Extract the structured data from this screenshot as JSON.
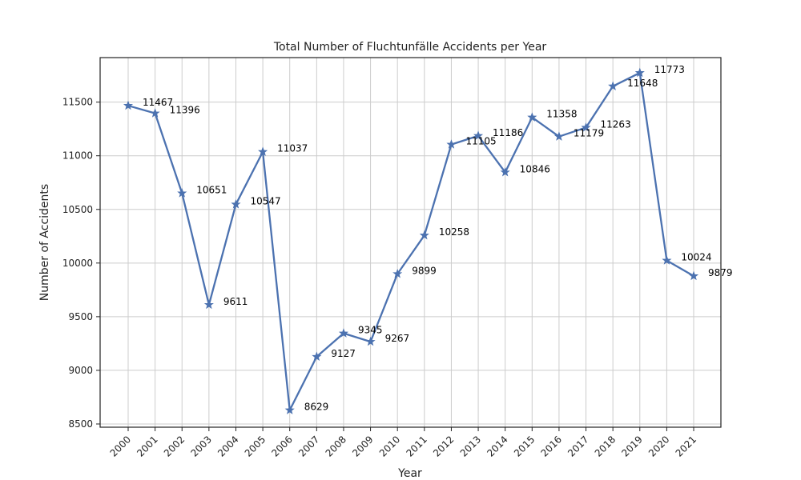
{
  "chart_data": {
    "type": "line",
    "title": "Total Number of Fluchtunfälle Accidents per Year",
    "xlabel": "Year",
    "ylabel": "Number of Accidents",
    "categories": [
      "2000",
      "2001",
      "2002",
      "2003",
      "2004",
      "2005",
      "2006",
      "2007",
      "2008",
      "2009",
      "2010",
      "2011",
      "2012",
      "2013",
      "2014",
      "2015",
      "2016",
      "2017",
      "2018",
      "2019",
      "2020",
      "2021"
    ],
    "series": [
      {
        "values": [
          11467,
          11396,
          10651,
          9611,
          10547,
          11037,
          8629,
          9127,
          9345,
          9267,
          9899,
          10258,
          11105,
          11186,
          10846,
          11358,
          11179,
          11263,
          11648,
          11773,
          10024,
          9879
        ]
      }
    ],
    "ylim": [
      8470,
      11915
    ],
    "yticks": [
      8500,
      9000,
      9500,
      10000,
      10500,
      11000,
      11500
    ],
    "grid": true,
    "marker": "star",
    "line_color": "#4c72b0",
    "x_tick_rotation": 45
  }
}
